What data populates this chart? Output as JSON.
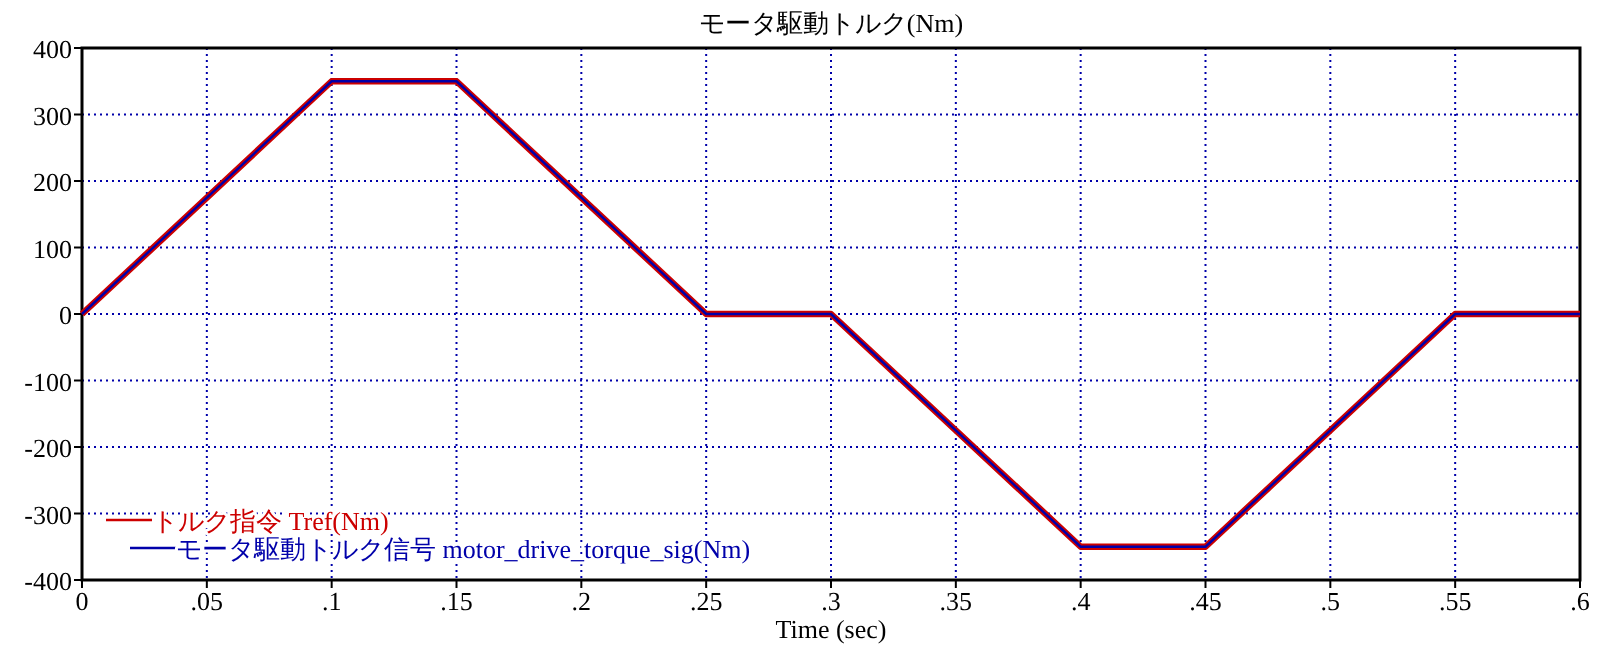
{
  "chart_data": {
    "type": "line",
    "title": "モータ駆動トルク(Nm)",
    "xlabel": "Time (sec)",
    "x": [
      0,
      0.1,
      0.15,
      0.25,
      0.3,
      0.4,
      0.45,
      0.55,
      0.6
    ],
    "series": [
      {
        "name": "トルク指令 Tref(Nm)",
        "color": "#cc0000",
        "values": [
          0,
          350,
          350,
          0,
          0,
          -350,
          -350,
          0,
          0
        ]
      },
      {
        "name": "モータ駆動トルク信号 motor_drive_torque_sig(Nm)",
        "color": "#0000aa",
        "values": [
          0,
          350,
          350,
          0,
          0,
          -350,
          -350,
          0,
          0
        ]
      }
    ],
    "xlim": [
      0,
      0.6
    ],
    "ylim": [
      -400,
      400
    ],
    "xticks": [
      0,
      {
        "value": 0.05,
        "label": ".05"
      },
      {
        "value": 0.1,
        "label": ".1"
      },
      {
        "value": 0.15,
        "label": ".15"
      },
      {
        "value": 0.2,
        "label": ".2"
      },
      {
        "value": 0.25,
        "label": ".25"
      },
      {
        "value": 0.3,
        "label": ".3"
      },
      {
        "value": 0.35,
        "label": ".35"
      },
      {
        "value": 0.4,
        "label": ".4"
      },
      {
        "value": 0.45,
        "label": ".45"
      },
      {
        "value": 0.5,
        "label": ".5"
      },
      {
        "value": 0.55,
        "label": ".55"
      },
      {
        "value": 0.6,
        "label": ".6"
      }
    ],
    "yticks": [
      -400,
      -300,
      -200,
      -100,
      0,
      100,
      200,
      300,
      400
    ],
    "grid": true,
    "legend": "bottom left",
    "marker": "none",
    "line_style": "solid"
  }
}
